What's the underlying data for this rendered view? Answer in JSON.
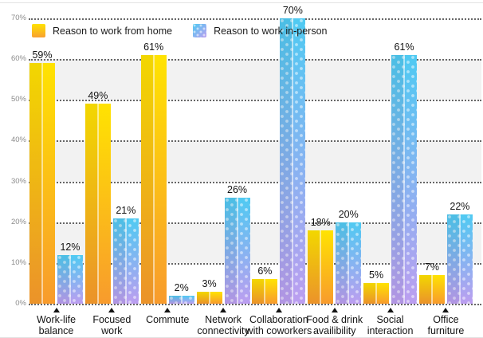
{
  "chart_data": {
    "type": "bar",
    "title": "",
    "categories": [
      "Work-life balance",
      "Focused work",
      "Commute",
      "Network connectivity",
      "Collaboration with coworkers",
      "Food & drink availibility",
      "Social interaction",
      "Office furniture"
    ],
    "category_label_lines": [
      [
        "Work-life",
        "balance"
      ],
      [
        "Focused",
        "work"
      ],
      [
        "Commute"
      ],
      [
        "Network",
        "connectivity"
      ],
      [
        "Collaboration",
        "with coworkers"
      ],
      [
        "Food & drink",
        "availibility"
      ],
      [
        "Social",
        "interaction"
      ],
      [
        "Office",
        "furniture"
      ]
    ],
    "series": [
      {
        "name": "Reason to work from home",
        "values": [
          59,
          49,
          61,
          3,
          6,
          18,
          5,
          7
        ],
        "gradient_top": "#ffe301",
        "gradient_bottom": "#f89b2d",
        "pattern": "solid"
      },
      {
        "name": "Reason to work in-person",
        "values": [
          12,
          21,
          2,
          26,
          70,
          20,
          61,
          22
        ],
        "gradient_top": "#4fcaf2",
        "gradient_bottom": "#bc9ef0",
        "pattern": "white-polka-dots"
      }
    ],
    "value_label_suffix": "%",
    "xlabel": "",
    "ylabel": "",
    "ylim": [
      0,
      70
    ],
    "yticks": [
      "0%",
      "10%",
      "20%",
      "30%",
      "40%",
      "50%",
      "60%",
      "70%"
    ],
    "grid": "dotted-horizontal",
    "row_banding": "alternating-gray",
    "legend_position": "top-left"
  },
  "colors": {
    "background": "#ffffff",
    "band": "#f2f2f2",
    "gridline": "#4d4d4d",
    "tick_label": "#8c8c8c",
    "value_label": "#141414",
    "category_label": "#141414"
  }
}
